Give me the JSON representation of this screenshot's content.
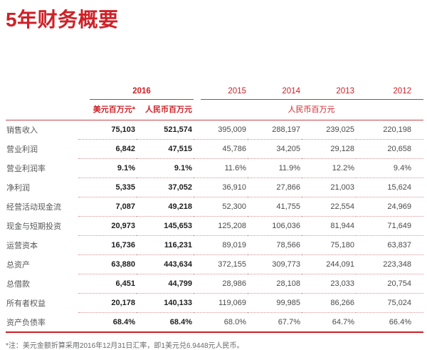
{
  "title": "5年财务概要",
  "table": {
    "header": {
      "group_2016": "2016",
      "years": [
        "2015",
        "2014",
        "2013",
        "2012"
      ],
      "unit_usd": "美元百万元*",
      "unit_rmb_2016": "人民币百万元",
      "unit_rmb_years": "人民币百万元"
    },
    "rows": [
      {
        "label": "销售收入",
        "usd_2016": "75,103",
        "rmb_2016": "521,574",
        "y2015": "395,009",
        "y2014": "288,197",
        "y2013": "239,025",
        "y2012": "220,198"
      },
      {
        "label": "营业利润",
        "usd_2016": "6,842",
        "rmb_2016": "47,515",
        "y2015": "45,786",
        "y2014": "34,205",
        "y2013": "29,128",
        "y2012": "20,658"
      },
      {
        "label": "营业利润率",
        "usd_2016": "9.1%",
        "rmb_2016": "9.1%",
        "y2015": "11.6%",
        "y2014": "11.9%",
        "y2013": "12.2%",
        "y2012": "9.4%"
      },
      {
        "label": "净利润",
        "usd_2016": "5,335",
        "rmb_2016": "37,052",
        "y2015": "36,910",
        "y2014": "27,866",
        "y2013": "21,003",
        "y2012": "15,624"
      },
      {
        "label": "经营活动现金流",
        "usd_2016": "7,087",
        "rmb_2016": "49,218",
        "y2015": "52,300",
        "y2014": "41,755",
        "y2013": "22,554",
        "y2012": "24,969"
      },
      {
        "label": "现金与短期投资",
        "usd_2016": "20,973",
        "rmb_2016": "145,653",
        "y2015": "125,208",
        "y2014": "106,036",
        "y2013": "81,944",
        "y2012": "71,649"
      },
      {
        "label": "运营资本",
        "usd_2016": "16,736",
        "rmb_2016": "116,231",
        "y2015": "89,019",
        "y2014": "78,566",
        "y2013": "75,180",
        "y2012": "63,837"
      },
      {
        "label": "总资产",
        "usd_2016": "63,880",
        "rmb_2016": "443,634",
        "y2015": "372,155",
        "y2014": "309,773",
        "y2013": "244,091",
        "y2012": "223,348"
      },
      {
        "label": "总借款",
        "usd_2016": "6,451",
        "rmb_2016": "44,799",
        "y2015": "28,986",
        "y2014": "28,108",
        "y2013": "23,033",
        "y2012": "20,754"
      },
      {
        "label": "所有者权益",
        "usd_2016": "20,178",
        "rmb_2016": "140,133",
        "y2015": "119,069",
        "y2014": "99,985",
        "y2013": "86,266",
        "y2012": "75,024"
      },
      {
        "label": "资产负债率",
        "usd_2016": "68.4%",
        "rmb_2016": "68.4%",
        "y2015": "68.0%",
        "y2014": "67.7%",
        "y2013": "64.7%",
        "y2012": "66.4%"
      }
    ]
  },
  "footnote": "*注：美元金额折算采用2016年12月31日汇率，即1美元兑6.9448元人民币。",
  "colors": {
    "accent_red": "#ce2127",
    "line_red": "#cc2026",
    "dotted_red": "#dd9194",
    "label_gray": "#57585a",
    "value_dark": "#1d1d1f",
    "value_gray": "#4a4a4c"
  }
}
